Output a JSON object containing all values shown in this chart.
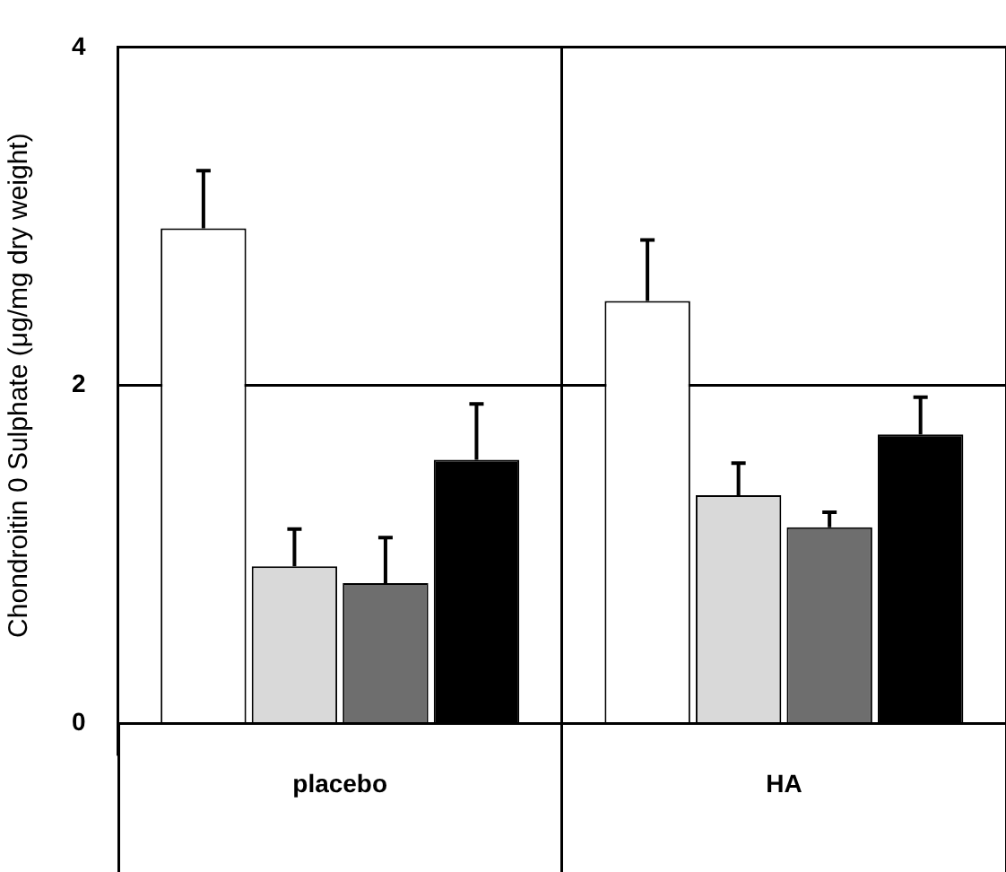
{
  "chart_data": {
    "type": "bar",
    "ylabel": "Chondroitin 0 Sulphate (μg/mg dry weight)",
    "categories": [
      "placebo",
      "HA"
    ],
    "series": [
      {
        "color": "#ffffff",
        "values": [
          2.93,
          2.5
        ],
        "errors": [
          [
            2.93,
            3.27
          ],
          [
            2.5,
            2.86
          ]
        ]
      },
      {
        "color": "#d9d9d9",
        "values": [
          0.93,
          1.35
        ],
        "errors": [
          [
            0.93,
            1.15
          ],
          [
            1.35,
            1.54
          ]
        ]
      },
      {
        "color": "#6e6e6e",
        "values": [
          0.83,
          1.16
        ],
        "errors": [
          [
            0.83,
            1.1
          ],
          [
            1.16,
            1.25
          ]
        ]
      },
      {
        "color": "#000000",
        "values": [
          1.56,
          1.71
        ],
        "errors": [
          [
            1.56,
            1.89
          ],
          [
            1.71,
            1.93
          ]
        ]
      }
    ],
    "ylim": [
      0,
      4
    ],
    "yticks": [
      0,
      2,
      4
    ],
    "grid": true,
    "legend": false
  }
}
